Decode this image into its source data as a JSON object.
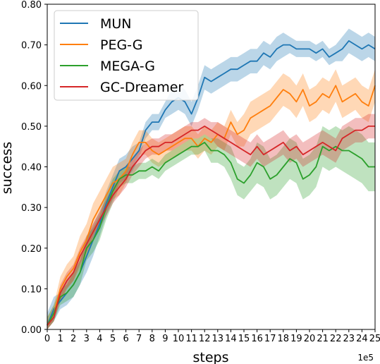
{
  "chart_data": {
    "type": "line",
    "xlabel": "steps",
    "ylabel": "success",
    "x_offset_label": "1e5",
    "xlim": [
      0,
      25
    ],
    "ylim": [
      0,
      0.8
    ],
    "x_ticks": [
      0,
      1,
      2,
      3,
      4,
      5,
      6,
      7,
      8,
      9,
      10,
      11,
      12,
      13,
      14,
      15,
      16,
      17,
      18,
      19,
      20,
      21,
      22,
      23,
      24,
      25
    ],
    "x_tick_labels": [
      "0",
      "1",
      "2",
      "3",
      "4",
      "5",
      "6",
      "7",
      "8",
      "9",
      "10",
      "11",
      "12",
      "13",
      "14",
      "15",
      "16",
      "17",
      "18",
      "19",
      "20",
      "21",
      "22",
      "23",
      "24",
      "25"
    ],
    "y_ticks": [
      0,
      0.1,
      0.2,
      0.3,
      0.4,
      0.5,
      0.6,
      0.7,
      0.8
    ],
    "y_tick_labels": [
      "0.00",
      "0.10",
      "0.20",
      "0.30",
      "0.40",
      "0.50",
      "0.60",
      "0.70",
      "0.80"
    ],
    "legend_position": "top-left",
    "grid": false,
    "x": [
      0,
      0.5,
      1,
      1.5,
      2,
      2.5,
      3,
      3.5,
      4,
      4.5,
      5,
      5.5,
      6,
      6.5,
      7,
      7.5,
      8,
      8.5,
      9,
      9.5,
      10,
      10.5,
      11,
      11.5,
      12,
      12.5,
      13,
      13.5,
      14,
      14.5,
      15,
      15.5,
      16,
      16.5,
      17,
      17.5,
      18,
      18.5,
      19,
      19.5,
      20,
      20.5,
      21,
      21.5,
      22,
      22.5,
      23,
      23.5,
      24,
      24.5,
      25
    ],
    "series": [
      {
        "name": "MUN",
        "color": "#1f77b4",
        "values": [
          0.01,
          0.05,
          0.07,
          0.09,
          0.11,
          0.14,
          0.18,
          0.22,
          0.26,
          0.31,
          0.35,
          0.39,
          0.4,
          0.42,
          0.44,
          0.49,
          0.51,
          0.51,
          0.54,
          0.56,
          0.57,
          0.56,
          0.53,
          0.57,
          0.62,
          0.61,
          0.62,
          0.63,
          0.64,
          0.64,
          0.65,
          0.66,
          0.66,
          0.68,
          0.67,
          0.69,
          0.7,
          0.7,
          0.69,
          0.69,
          0.69,
          0.68,
          0.69,
          0.67,
          0.68,
          0.69,
          0.71,
          0.7,
          0.69,
          0.7,
          0.69
        ],
        "band": [
          0.03,
          0.03,
          0.02,
          0.03,
          0.03,
          0.03,
          0.04,
          0.04,
          0.03,
          0.03,
          0.03,
          0.03,
          0.03,
          0.03,
          0.02,
          0.02,
          0.02,
          0.02,
          0.02,
          0.03,
          0.03,
          0.03,
          0.03,
          0.03,
          0.03,
          0.03,
          0.03,
          0.03,
          0.03,
          0.03,
          0.03,
          0.03,
          0.03,
          0.03,
          0.03,
          0.03,
          0.03,
          0.02,
          0.02,
          0.02,
          0.02,
          0.02,
          0.02,
          0.02,
          0.02,
          0.03,
          0.03,
          0.03,
          0.03,
          0.03,
          0.03
        ]
      },
      {
        "name": "PEG-G",
        "color": "#ff7f0e",
        "values": [
          0.01,
          0.04,
          0.1,
          0.13,
          0.15,
          0.19,
          0.22,
          0.27,
          0.3,
          0.33,
          0.36,
          0.37,
          0.39,
          0.43,
          0.46,
          0.46,
          0.44,
          0.43,
          0.44,
          0.45,
          0.46,
          0.47,
          0.47,
          0.45,
          0.47,
          0.46,
          0.48,
          0.47,
          0.51,
          0.48,
          0.49,
          0.52,
          0.53,
          0.54,
          0.55,
          0.57,
          0.59,
          0.58,
          0.56,
          0.59,
          0.55,
          0.56,
          0.58,
          0.57,
          0.6,
          0.56,
          0.57,
          0.58,
          0.56,
          0.55,
          0.6
        ],
        "band": [
          0.02,
          0.02,
          0.03,
          0.03,
          0.03,
          0.04,
          0.04,
          0.04,
          0.04,
          0.04,
          0.04,
          0.04,
          0.03,
          0.03,
          0.03,
          0.03,
          0.03,
          0.03,
          0.03,
          0.03,
          0.03,
          0.03,
          0.03,
          0.03,
          0.03,
          0.03,
          0.03,
          0.03,
          0.03,
          0.03,
          0.04,
          0.04,
          0.04,
          0.04,
          0.04,
          0.04,
          0.04,
          0.04,
          0.04,
          0.04,
          0.04,
          0.04,
          0.04,
          0.04,
          0.04,
          0.04,
          0.04,
          0.04,
          0.04,
          0.04,
          0.04
        ]
      },
      {
        "name": "MEGA-G",
        "color": "#2ca02c",
        "values": [
          0.01,
          0.04,
          0.08,
          0.09,
          0.11,
          0.14,
          0.2,
          0.22,
          0.25,
          0.3,
          0.34,
          0.37,
          0.38,
          0.38,
          0.39,
          0.39,
          0.4,
          0.39,
          0.41,
          0.42,
          0.43,
          0.44,
          0.45,
          0.45,
          0.46,
          0.44,
          0.44,
          0.43,
          0.41,
          0.37,
          0.36,
          0.38,
          0.41,
          0.4,
          0.37,
          0.38,
          0.4,
          0.42,
          0.41,
          0.37,
          0.38,
          0.4,
          0.45,
          0.44,
          0.45,
          0.44,
          0.44,
          0.43,
          0.42,
          0.4,
          0.4
        ],
        "band": [
          0.02,
          0.02,
          0.02,
          0.02,
          0.03,
          0.03,
          0.03,
          0.03,
          0.03,
          0.03,
          0.03,
          0.02,
          0.02,
          0.02,
          0.02,
          0.02,
          0.02,
          0.02,
          0.02,
          0.02,
          0.02,
          0.02,
          0.02,
          0.02,
          0.02,
          0.03,
          0.03,
          0.03,
          0.04,
          0.04,
          0.04,
          0.04,
          0.05,
          0.05,
          0.05,
          0.05,
          0.05,
          0.05,
          0.05,
          0.05,
          0.05,
          0.05,
          0.05,
          0.05,
          0.05,
          0.05,
          0.06,
          0.06,
          0.06,
          0.06,
          0.06
        ]
      },
      {
        "name": "GC-Dreamer",
        "color": "#d62728",
        "values": [
          0.01,
          0.03,
          0.09,
          0.12,
          0.14,
          0.18,
          0.21,
          0.24,
          0.27,
          0.3,
          0.33,
          0.35,
          0.37,
          0.4,
          0.42,
          0.44,
          0.45,
          0.45,
          0.46,
          0.46,
          0.47,
          0.48,
          0.49,
          0.49,
          0.5,
          0.49,
          0.48,
          0.47,
          0.46,
          0.45,
          0.44,
          0.43,
          0.45,
          0.43,
          0.44,
          0.45,
          0.46,
          0.44,
          0.45,
          0.43,
          0.44,
          0.45,
          0.46,
          0.45,
          0.44,
          0.47,
          0.48,
          0.49,
          0.49,
          0.5,
          0.5
        ],
        "band": [
          0.01,
          0.01,
          0.02,
          0.02,
          0.02,
          0.02,
          0.02,
          0.02,
          0.02,
          0.02,
          0.02,
          0.02,
          0.02,
          0.02,
          0.02,
          0.02,
          0.02,
          0.02,
          0.02,
          0.02,
          0.02,
          0.02,
          0.02,
          0.02,
          0.02,
          0.02,
          0.03,
          0.03,
          0.03,
          0.03,
          0.03,
          0.03,
          0.03,
          0.03,
          0.03,
          0.03,
          0.03,
          0.03,
          0.03,
          0.03,
          0.03,
          0.03,
          0.03,
          0.03,
          0.03,
          0.03,
          0.03,
          0.03,
          0.03,
          0.03,
          0.03
        ]
      }
    ]
  }
}
